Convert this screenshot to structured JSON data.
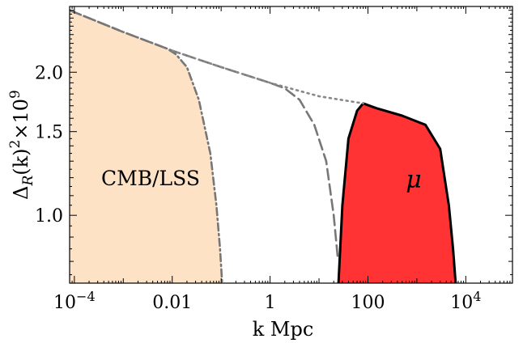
{
  "chart_data": {
    "type": "area",
    "xscale": "log",
    "yscale": "log",
    "xlabel": "k Mpc",
    "ylabel": "Δ_R(k)^2×10^9",
    "xlim": [
      8e-05,
      90000
    ],
    "ylim": [
      0.72,
      2.75
    ],
    "grid": false,
    "x_ticks": [
      {
        "value": 0.0001,
        "label": "10^-4"
      },
      {
        "value": 0.01,
        "label": "0.01"
      },
      {
        "value": 1,
        "label": "1"
      },
      {
        "value": 100,
        "label": "100"
      },
      {
        "value": 10000,
        "label": "10^4"
      }
    ],
    "y_ticks": [
      {
        "value": 1.0,
        "label": "1.0"
      },
      {
        "value": 1.5,
        "label": "1.5"
      },
      {
        "value": 2.0,
        "label": "2.0"
      }
    ],
    "regions": [
      {
        "label": "CMB/LSS",
        "color": "#fde2c6",
        "upper_boundary": [
          [
            8e-05,
            2.7
          ],
          [
            0.0003,
            2.55
          ],
          [
            0.001,
            2.43
          ],
          [
            0.003,
            2.32
          ],
          [
            0.008,
            2.24
          ],
          [
            0.012,
            2.18
          ],
          [
            0.02,
            2.05
          ],
          [
            0.035,
            1.75
          ],
          [
            0.06,
            1.35
          ],
          [
            0.08,
            1.05
          ],
          [
            0.095,
            0.85
          ],
          [
            0.105,
            0.72
          ]
        ]
      },
      {
        "label": "μ",
        "color": "#ff3333",
        "edge_color": "#000000",
        "upper_boundary": [
          [
            25,
            0.72
          ],
          [
            30,
            1.05
          ],
          [
            40,
            1.45
          ],
          [
            60,
            1.66
          ],
          [
            80,
            1.72
          ],
          [
            150,
            1.68
          ],
          [
            500,
            1.62
          ],
          [
            1500,
            1.55
          ],
          [
            3000,
            1.38
          ],
          [
            4500,
            1.05
          ],
          [
            5500,
            0.85
          ],
          [
            6200,
            0.72
          ]
        ]
      }
    ],
    "series": [
      {
        "style": "dash-dot",
        "color": "#777777",
        "x": [
          8e-05,
          0.001,
          0.008,
          0.012,
          0.02,
          0.035,
          0.06,
          0.08,
          0.095,
          0.105
        ],
        "y": [
          2.7,
          2.43,
          2.24,
          2.18,
          2.05,
          1.75,
          1.35,
          1.05,
          0.85,
          0.72
        ]
      },
      {
        "style": "dashed",
        "color": "#777777",
        "x": [
          8e-05,
          0.001,
          0.01,
          0.1,
          1,
          2,
          4,
          8,
          14,
          20,
          24
        ],
        "y": [
          2.7,
          2.43,
          2.22,
          2.05,
          1.9,
          1.85,
          1.75,
          1.55,
          1.3,
          1.0,
          0.82
        ]
      },
      {
        "style": "dotted",
        "color": "#888888",
        "x": [
          0.01,
          0.1,
          1,
          10,
          80
        ],
        "y": [
          2.22,
          2.05,
          1.9,
          1.78,
          1.72
        ]
      }
    ],
    "annotations": [
      "CMB/LSS",
      "μ"
    ]
  }
}
